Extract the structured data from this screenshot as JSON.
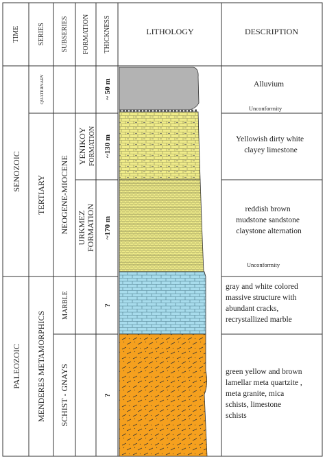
{
  "headers": {
    "time": "TIME",
    "series": "SERIES",
    "subseries": "SUBSERIES",
    "formation": "FORMATION",
    "thickness": "THICKNESS",
    "lithology": "LITHOLOGY",
    "description": "DESCRIPTION"
  },
  "time": {
    "senozoic": "SENOZOIC",
    "paleozoic": "PALEOZOIC"
  },
  "series": {
    "quaternary": "QUATERNARY",
    "tertiary": "TERTIARY",
    "menderes": "MENDERES METAMORPHICS"
  },
  "subseries": {
    "neogene": "NEOGENE-MIOCENE",
    "marble": "MARBLE",
    "schist": "SCHIST - GNAYS"
  },
  "formation": {
    "yenikoy_1": "YENIKOY",
    "yenikoy_2": "FORMATION",
    "urkmez_1": "URKMEZ",
    "urkmez_2": "FORMATION"
  },
  "thickness": {
    "alluvium": "~ 50 m",
    "yenikoy": "~130 m",
    "urkmez": "~170 m",
    "marble": "?",
    "schist": "?"
  },
  "descriptions": {
    "alluvium": "Alluvium",
    "yenikoy": [
      "Yellowish dirty white",
      "clayey limestone"
    ],
    "urkmez": [
      "reddish brown",
      "mudstone sandstone",
      "claystone alternation"
    ],
    "marble": [
      "gray and white colored",
      "massive structure with",
      "abundant cracks,",
      "recrystallized marble"
    ],
    "schist": [
      "green yellow and brown",
      "lamellar meta quartzite ,",
      "meta granite, mica",
      "schists, limestone",
      "schists"
    ]
  },
  "unconformities": [
    "Unconformity",
    "Unconformity"
  ],
  "colors": {
    "alluvium": "#b3b3b3",
    "limestone": "#f0ec8a",
    "marble": "#a8dcec",
    "schist": "#f5a01e",
    "line": "#333333"
  }
}
